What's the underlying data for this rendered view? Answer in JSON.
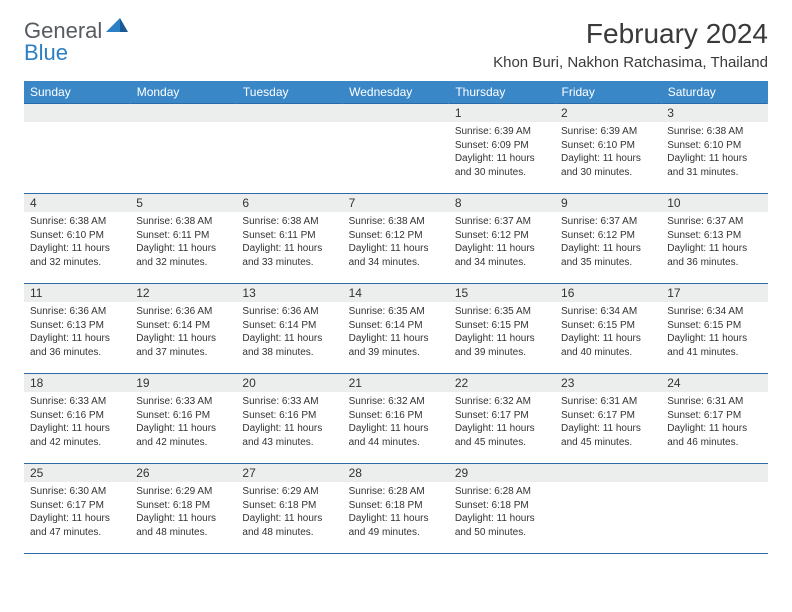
{
  "logo": {
    "gen": "General",
    "blue": "Blue"
  },
  "title": "February 2024",
  "location": "Khon Buri, Nakhon Ratchasima, Thailand",
  "colors": {
    "header_bg": "#3a87c8",
    "header_text": "#ffffff",
    "border": "#2b6ca8",
    "daynum_bg": "#eceded",
    "text": "#333333",
    "logo_gray": "#555b61",
    "logo_blue": "#2b7fc4"
  },
  "weekdays": [
    "Sunday",
    "Monday",
    "Tuesday",
    "Wednesday",
    "Thursday",
    "Friday",
    "Saturday"
  ],
  "weeks": [
    [
      null,
      null,
      null,
      null,
      {
        "n": "1",
        "sr": "6:39 AM",
        "ss": "6:09 PM",
        "dl": "11 hours and 30 minutes."
      },
      {
        "n": "2",
        "sr": "6:39 AM",
        "ss": "6:10 PM",
        "dl": "11 hours and 30 minutes."
      },
      {
        "n": "3",
        "sr": "6:38 AM",
        "ss": "6:10 PM",
        "dl": "11 hours and 31 minutes."
      }
    ],
    [
      {
        "n": "4",
        "sr": "6:38 AM",
        "ss": "6:10 PM",
        "dl": "11 hours and 32 minutes."
      },
      {
        "n": "5",
        "sr": "6:38 AM",
        "ss": "6:11 PM",
        "dl": "11 hours and 32 minutes."
      },
      {
        "n": "6",
        "sr": "6:38 AM",
        "ss": "6:11 PM",
        "dl": "11 hours and 33 minutes."
      },
      {
        "n": "7",
        "sr": "6:38 AM",
        "ss": "6:12 PM",
        "dl": "11 hours and 34 minutes."
      },
      {
        "n": "8",
        "sr": "6:37 AM",
        "ss": "6:12 PM",
        "dl": "11 hours and 34 minutes."
      },
      {
        "n": "9",
        "sr": "6:37 AM",
        "ss": "6:12 PM",
        "dl": "11 hours and 35 minutes."
      },
      {
        "n": "10",
        "sr": "6:37 AM",
        "ss": "6:13 PM",
        "dl": "11 hours and 36 minutes."
      }
    ],
    [
      {
        "n": "11",
        "sr": "6:36 AM",
        "ss": "6:13 PM",
        "dl": "11 hours and 36 minutes."
      },
      {
        "n": "12",
        "sr": "6:36 AM",
        "ss": "6:14 PM",
        "dl": "11 hours and 37 minutes."
      },
      {
        "n": "13",
        "sr": "6:36 AM",
        "ss": "6:14 PM",
        "dl": "11 hours and 38 minutes."
      },
      {
        "n": "14",
        "sr": "6:35 AM",
        "ss": "6:14 PM",
        "dl": "11 hours and 39 minutes."
      },
      {
        "n": "15",
        "sr": "6:35 AM",
        "ss": "6:15 PM",
        "dl": "11 hours and 39 minutes."
      },
      {
        "n": "16",
        "sr": "6:34 AM",
        "ss": "6:15 PM",
        "dl": "11 hours and 40 minutes."
      },
      {
        "n": "17",
        "sr": "6:34 AM",
        "ss": "6:15 PM",
        "dl": "11 hours and 41 minutes."
      }
    ],
    [
      {
        "n": "18",
        "sr": "6:33 AM",
        "ss": "6:16 PM",
        "dl": "11 hours and 42 minutes."
      },
      {
        "n": "19",
        "sr": "6:33 AM",
        "ss": "6:16 PM",
        "dl": "11 hours and 42 minutes."
      },
      {
        "n": "20",
        "sr": "6:33 AM",
        "ss": "6:16 PM",
        "dl": "11 hours and 43 minutes."
      },
      {
        "n": "21",
        "sr": "6:32 AM",
        "ss": "6:16 PM",
        "dl": "11 hours and 44 minutes."
      },
      {
        "n": "22",
        "sr": "6:32 AM",
        "ss": "6:17 PM",
        "dl": "11 hours and 45 minutes."
      },
      {
        "n": "23",
        "sr": "6:31 AM",
        "ss": "6:17 PM",
        "dl": "11 hours and 45 minutes."
      },
      {
        "n": "24",
        "sr": "6:31 AM",
        "ss": "6:17 PM",
        "dl": "11 hours and 46 minutes."
      }
    ],
    [
      {
        "n": "25",
        "sr": "6:30 AM",
        "ss": "6:17 PM",
        "dl": "11 hours and 47 minutes."
      },
      {
        "n": "26",
        "sr": "6:29 AM",
        "ss": "6:18 PM",
        "dl": "11 hours and 48 minutes."
      },
      {
        "n": "27",
        "sr": "6:29 AM",
        "ss": "6:18 PM",
        "dl": "11 hours and 48 minutes."
      },
      {
        "n": "28",
        "sr": "6:28 AM",
        "ss": "6:18 PM",
        "dl": "11 hours and 49 minutes."
      },
      {
        "n": "29",
        "sr": "6:28 AM",
        "ss": "6:18 PM",
        "dl": "11 hours and 50 minutes."
      },
      null,
      null
    ]
  ],
  "labels": {
    "sunrise": "Sunrise: ",
    "sunset": "Sunset: ",
    "daylight": "Daylight: "
  }
}
